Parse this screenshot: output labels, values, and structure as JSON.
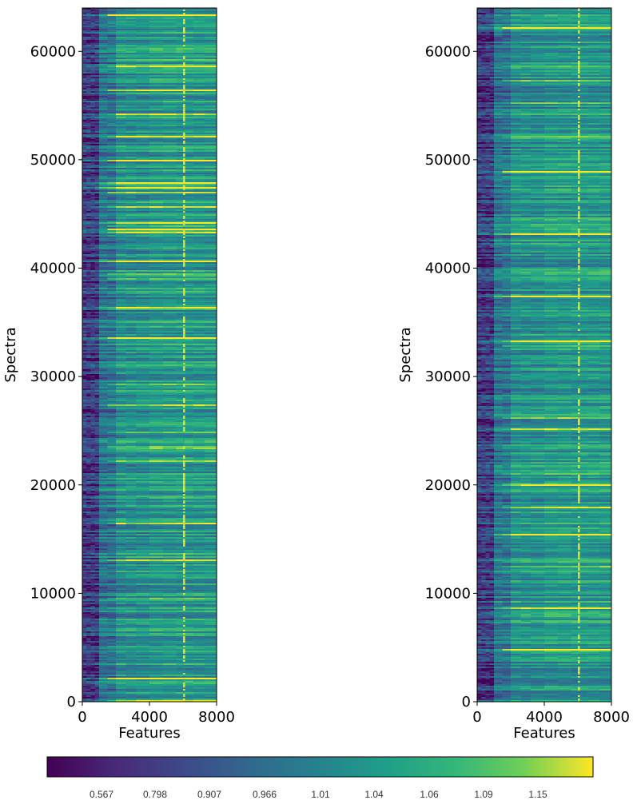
{
  "chart_data": [
    {
      "type": "heatmap",
      "xlabel": "Features",
      "ylabel": "Spectra",
      "xlim": [
        0,
        8000
      ],
      "ylim": [
        0,
        64000
      ],
      "x_ticks": [
        0,
        4000,
        8000
      ],
      "y_ticks": [
        0,
        10000,
        20000,
        30000,
        40000,
        50000,
        60000
      ],
      "x_tick_labels": [
        "0",
        "4000",
        "8000"
      ],
      "y_tick_labels": [
        "0",
        "10000",
        "20000",
        "30000",
        "40000",
        "50000",
        "60000"
      ],
      "bright_feature_column": 6050,
      "low_value_feature_range": [
        0,
        1000
      ]
    },
    {
      "type": "heatmap",
      "xlabel": "Features",
      "ylabel": "Spectra",
      "xlim": [
        0,
        8000
      ],
      "ylim": [
        0,
        64000
      ],
      "x_ticks": [
        0,
        4000,
        8000
      ],
      "y_ticks": [
        0,
        10000,
        20000,
        30000,
        40000,
        50000,
        60000
      ],
      "x_tick_labels": [
        "0",
        "4000",
        "8000"
      ],
      "y_tick_labels": [
        "0",
        "10000",
        "20000",
        "30000",
        "40000",
        "50000",
        "60000"
      ],
      "bright_feature_column": 6050,
      "low_value_feature_range": [
        0,
        1000
      ]
    }
  ],
  "colorbar": {
    "colormap": "viridis",
    "tick_labels": [
      "0.567",
      "0.798",
      "0.907",
      "0.966",
      "1.01",
      "1.04",
      "1.06",
      "1.09",
      "1.15"
    ],
    "colors": [
      "#440154",
      "#3b528b",
      "#21918c",
      "#5ec962",
      "#fde725"
    ]
  }
}
